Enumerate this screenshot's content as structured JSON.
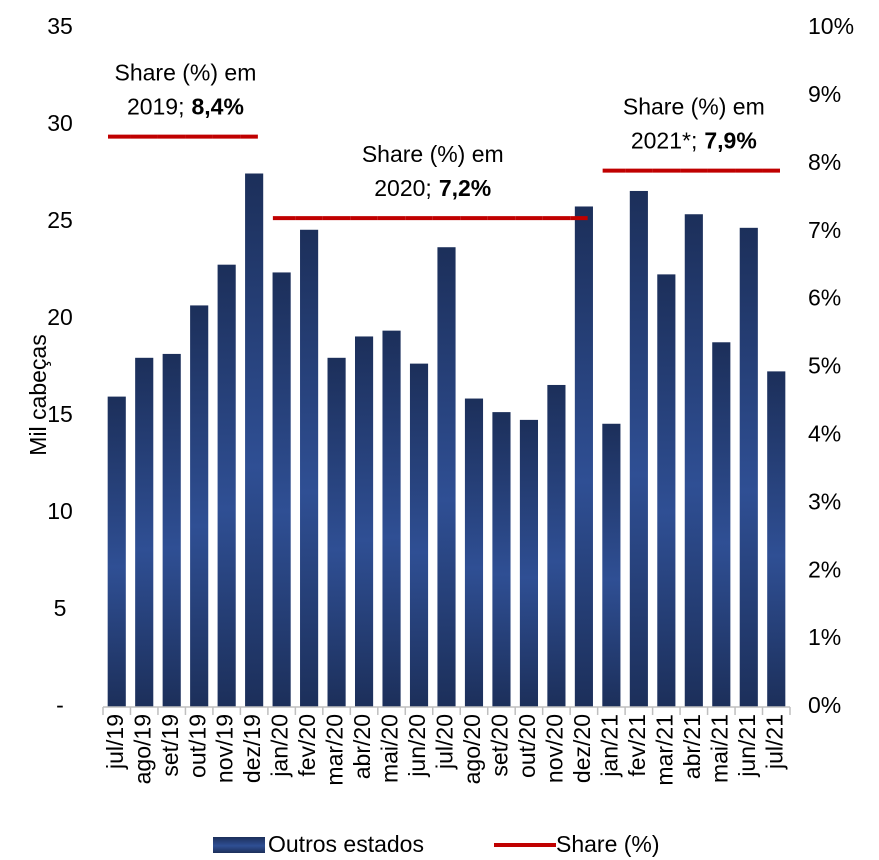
{
  "chart_data": {
    "type": "bar",
    "y_label": "Mil cabeças",
    "categories": [
      "jul/19",
      "ago/19",
      "set/19",
      "out/19",
      "nov/19",
      "dez/19",
      "jan/20",
      "fev/20",
      "mar/20",
      "abr/20",
      "mai/20",
      "jun/20",
      "jul/20",
      "ago/20",
      "set/20",
      "out/20",
      "nov/20",
      "dez/20",
      "jan/21",
      "fev/21",
      "mar/21",
      "abr/21",
      "mai/21",
      "jun/21",
      "jul/21"
    ],
    "series": [
      {
        "name": "Outros estados",
        "color": "#2f4f94",
        "values": [
          16.0,
          18.0,
          18.2,
          20.7,
          22.8,
          27.5,
          22.4,
          24.6,
          18.0,
          19.1,
          19.4,
          17.7,
          23.7,
          15.9,
          15.2,
          14.8,
          16.6,
          25.8,
          14.6,
          26.6,
          22.3,
          25.4,
          18.8,
          24.7,
          17.3
        ]
      },
      {
        "name": "Share (%)",
        "color": "#c00000",
        "axis": "y2",
        "values": [
          8.4,
          8.4,
          8.4,
          8.4,
          8.4,
          8.4,
          7.2,
          7.2,
          7.2,
          7.2,
          7.2,
          7.2,
          7.2,
          7.2,
          7.2,
          7.2,
          7.2,
          7.2,
          7.9,
          7.9,
          7.9,
          7.9,
          7.9,
          7.9,
          7.9
        ]
      }
    ],
    "ylim": [
      0,
      35
    ],
    "yticks": [
      {
        "value": 0,
        "label": "-"
      },
      5,
      10,
      15,
      20,
      25,
      30,
      35
    ],
    "y2lim": [
      0,
      10
    ],
    "y2ticks": [
      {
        "value": 0,
        "label": "0%"
      },
      {
        "value": 1,
        "label": "1%"
      },
      {
        "value": 2,
        "label": "2%"
      },
      {
        "value": 3,
        "label": "3%"
      },
      {
        "value": 4,
        "label": "4%"
      },
      {
        "value": 5,
        "label": "5%"
      },
      {
        "value": 6,
        "label": "6%"
      },
      {
        "value": 7,
        "label": "7%"
      },
      {
        "value": 8,
        "label": "8%"
      },
      {
        "value": 9,
        "label": "9%"
      },
      {
        "value": 10,
        "label": "10%"
      }
    ],
    "annotations": [
      {
        "lines": [
          "Share (%) em",
          "2019;"
        ],
        "bold": "8,4%"
      },
      {
        "lines": [
          "Share (%) em",
          "2020;"
        ],
        "bold": "7,2%"
      },
      {
        "lines": [
          "Share (%) em",
          "2021*;"
        ],
        "bold": "7,9%"
      }
    ],
    "legend": "bottom"
  }
}
